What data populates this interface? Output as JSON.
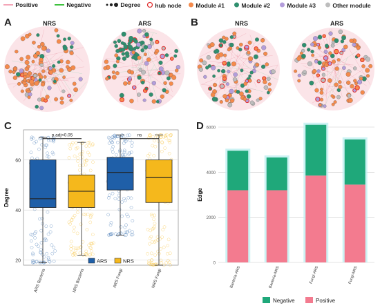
{
  "legend_top": {
    "positive": "Positive",
    "negative": "Negative",
    "degree": "Degree",
    "hub_node": "hub node",
    "module1": "Module #1",
    "module2": "Module #2",
    "module3": "Module #3",
    "other": "Other module",
    "colors": {
      "positive": "#f4a6b8",
      "negative": "#3ec23e",
      "module1": "#f58a4b",
      "module2": "#2f8f6e",
      "module3": "#b39ddb",
      "other": "#bdbdbd",
      "hub": "#e03030"
    }
  },
  "panels": {
    "A": {
      "letter": "A",
      "titles": [
        "NRS",
        "ARS"
      ]
    },
    "B": {
      "letter": "B",
      "titles": [
        "NRS",
        "ARS"
      ]
    },
    "C": {
      "letter": "C"
    },
    "D": {
      "letter": "D"
    }
  },
  "chart_data": [
    {
      "type": "box",
      "ylabel": "Degree",
      "ylim": [
        18,
        72
      ],
      "yticks": [
        20,
        40,
        60
      ],
      "categories": [
        "ARS Bacteria",
        "NRS Bacteria",
        "ARS Fungi",
        "NRS Fungi"
      ],
      "groups": [
        "ARS",
        "NRS",
        "ARS",
        "NRS"
      ],
      "boxes": [
        {
          "min": 19,
          "q1": 41,
          "median": 44.5,
          "q3": 60,
          "max": 69
        },
        {
          "min": 22,
          "q1": 41,
          "median": 47.5,
          "q3": 54,
          "max": 67
        },
        {
          "min": 30,
          "q1": 48,
          "median": 55,
          "q3": 61,
          "max": 70
        },
        {
          "min": 18,
          "q1": 43,
          "median": 53,
          "q3": 60,
          "max": 70
        }
      ],
      "annotations": [
        "p.adj<0.05",
        "ns"
      ],
      "legend": [
        "ARS",
        "NRS"
      ],
      "colors": {
        "ARS": "#1f5fa8",
        "NRS": "#f5b81c"
      }
    },
    {
      "type": "bar",
      "stacked": true,
      "ylabel": "Edge",
      "ylim": [
        0,
        6000
      ],
      "yticks": [
        0,
        2000,
        4000,
        6000
      ],
      "categories": [
        "Bacteria-ARS",
        "Bacteria-NRS",
        "Fungi-ARS",
        "Fungi-NRS"
      ],
      "series": [
        {
          "name": "Positive",
          "values": [
            3200,
            3200,
            3850,
            3450
          ],
          "color": "#f37b8f"
        },
        {
          "name": "Negative",
          "values": [
            1750,
            1450,
            2250,
            2000
          ],
          "color": "#1fa87a"
        }
      ],
      "legend_position": "bottom"
    }
  ]
}
